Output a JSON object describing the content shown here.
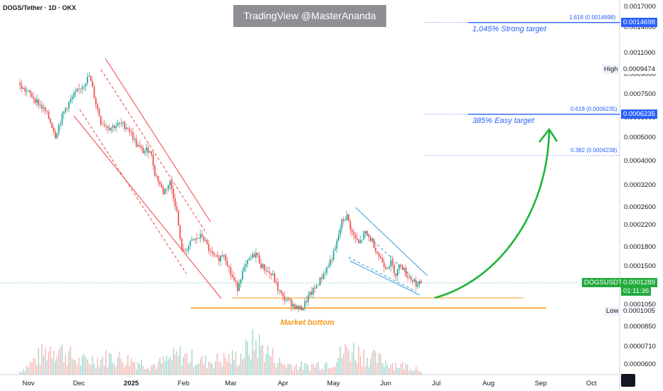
{
  "header": {
    "symbol_title": "DOGS/Tether · 1D · OKX",
    "watermark": "TradingView @MasterAnanda"
  },
  "y_axis_labels": [
    {
      "value": 0.0017,
      "text": "0.0017000"
    },
    {
      "value": 0.0014,
      "text": "0.0014000"
    },
    {
      "value": 0.0011,
      "text": "0.0011000"
    },
    {
      "value": 0.0009,
      "text": "0.0009000"
    },
    {
      "value": 0.00075,
      "text": "0.0007500"
    },
    {
      "value": 0.0006,
      "text": "0.0006000"
    },
    {
      "value": 0.0005,
      "text": "0.0005000"
    },
    {
      "value": 0.0004,
      "text": "0.0004000"
    },
    {
      "value": 0.00032,
      "text": "0.0003200"
    },
    {
      "value": 0.00026,
      "text": "0.0002600"
    },
    {
      "value": 0.00022,
      "text": "0.0002200"
    },
    {
      "value": 0.00018,
      "text": "0.0001800"
    },
    {
      "value": 0.00015,
      "text": "0.0001500"
    },
    {
      "value": 0.000105,
      "text": "0.0001050"
    },
    {
      "value": 8.5e-05,
      "text": "0.0000850"
    },
    {
      "value": 7.1e-05,
      "text": "0.0000710"
    },
    {
      "value": 6e-05,
      "text": "0.0000600"
    }
  ],
  "x_axis_labels": [
    {
      "text": "Nov",
      "day": 0,
      "bold": false
    },
    {
      "text": "Dec",
      "day": 30,
      "bold": false
    },
    {
      "text": "2025",
      "day": 61,
      "bold": true
    },
    {
      "text": "Feb",
      "day": 92,
      "bold": false
    },
    {
      "text": "Mar",
      "day": 120,
      "bold": false
    },
    {
      "text": "Apr",
      "day": 151,
      "bold": false
    },
    {
      "text": "May",
      "day": 181,
      "bold": false
    },
    {
      "text": "Jun",
      "day": 212,
      "bold": false
    },
    {
      "text": "Jul",
      "day": 242,
      "bold": false
    },
    {
      "text": "Aug",
      "day": 273,
      "bold": false
    },
    {
      "text": "Sep",
      "day": 304,
      "bold": false
    },
    {
      "text": "Oct",
      "day": 334,
      "bold": false
    }
  ],
  "price_tags": {
    "strong_target": "0.0014698",
    "high": "0.0009474",
    "easy_target": "0.0006235",
    "current_symbol": "DOGSUSDT",
    "current_price": "0.0001289",
    "countdown": "01:11:36",
    "low": "0.0001005"
  },
  "side_labels": {
    "high": "High",
    "low": "Low"
  },
  "fib_levels": [
    {
      "label": "1.618 (0.0014698)",
      "value": 0.0014698
    },
    {
      "label": "0.618 (0.0006235)",
      "value": 0.0006235
    },
    {
      "label": "0.382 (0.0004238)",
      "value": 0.0004238
    }
  ],
  "annotations": {
    "strong_target": "1,045% Strong target",
    "easy_target": "385% Easy target",
    "market_bottom": "Market bottom"
  },
  "colors": {
    "up": "#26a69a",
    "down": "#ef5350",
    "fib": "#2962ff",
    "support": "#f59b18",
    "arrow": "#1eb53a",
    "channel_red": "#f0434a",
    "wedge_blue": "#3a9fd6",
    "current_tag": "#22ab3d"
  },
  "chart_data": {
    "type": "candlestick",
    "symbol": "DOGSUSDT",
    "timeframe": "1D",
    "exchange": "OKX",
    "y_scale": "log",
    "ylim": [
      5.8e-05,
      0.00172
    ],
    "x": "days since Nov 1 2024",
    "price_waypoints": [
      [
        -5,
        0.00081
      ],
      [
        2,
        0.00074
      ],
      [
        10,
        0.00064
      ],
      [
        14,
        0.00056
      ],
      [
        16,
        0.00051
      ],
      [
        22,
        0.00066
      ],
      [
        27,
        0.00074
      ],
      [
        33,
        0.00083
      ],
      [
        36,
        0.00089
      ],
      [
        40,
        0.00069
      ],
      [
        43,
        0.00058
      ],
      [
        48,
        0.00055
      ],
      [
        55,
        0.00057
      ],
      [
        59,
        0.00055
      ],
      [
        64,
        0.00047
      ],
      [
        68,
        0.00044
      ],
      [
        72,
        0.00045
      ],
      [
        75,
        0.00036
      ],
      [
        80,
        0.0003
      ],
      [
        84,
        0.00033
      ],
      [
        88,
        0.00025
      ],
      [
        90,
        0.00019
      ],
      [
        92,
        0.00017
      ],
      [
        97,
        0.00019
      ],
      [
        103,
        0.0002
      ],
      [
        108,
        0.00017
      ],
      [
        112,
        0.00016
      ],
      [
        116,
        0.00017
      ],
      [
        120,
        0.00014
      ],
      [
        124,
        0.000123
      ],
      [
        126,
        0.000137
      ],
      [
        131,
        0.00016
      ],
      [
        135,
        0.00017
      ],
      [
        138,
        0.000152
      ],
      [
        142,
        0.000143
      ],
      [
        145,
        0.000137
      ],
      [
        148,
        0.000122
      ],
      [
        151,
        0.000112
      ],
      [
        155,
        0.000108
      ],
      [
        159,
        0.000102
      ],
      [
        161,
        0.000101
      ],
      [
        163,
        0.000103
      ],
      [
        166,
        0.000113
      ],
      [
        170,
        0.000122
      ],
      [
        174,
        0.000136
      ],
      [
        178,
        0.000152
      ],
      [
        182,
        0.000175
      ],
      [
        186,
        0.000228
      ],
      [
        189,
        0.00024
      ],
      [
        192,
        0.000205
      ],
      [
        196,
        0.000185
      ],
      [
        200,
        0.000205
      ],
      [
        204,
        0.00019
      ],
      [
        208,
        0.000165
      ],
      [
        212,
        0.00015
      ],
      [
        215,
        0.000155
      ],
      [
        218,
        0.00014
      ],
      [
        221,
        0.000155
      ],
      [
        224,
        0.00014
      ],
      [
        228,
        0.000132
      ],
      [
        231,
        0.000126
      ],
      [
        233,
        0.0001289
      ]
    ],
    "volume_waypoints": [
      [
        -5,
        0.1
      ],
      [
        15,
        0.9
      ],
      [
        30,
        0.4
      ],
      [
        50,
        0.55
      ],
      [
        75,
        0.3
      ],
      [
        90,
        0.6
      ],
      [
        105,
        0.4
      ],
      [
        125,
        0.55
      ],
      [
        135,
        1.0
      ],
      [
        150,
        0.35
      ],
      [
        165,
        0.25
      ],
      [
        180,
        0.4
      ],
      [
        190,
        0.8
      ],
      [
        205,
        0.5
      ],
      [
        220,
        0.3
      ],
      [
        233,
        0.2
      ]
    ],
    "fibonacci": [
      {
        "ratio": 1.618,
        "price": 0.0014698
      },
      {
        "ratio": 0.618,
        "price": 0.0006235
      },
      {
        "ratio": 0.382,
        "price": 0.0004238
      }
    ],
    "high": 0.0009474,
    "low": 0.0001005,
    "current": 0.0001289,
    "support_levels": [
      0.0001005,
      0.000112
    ],
    "targets": [
      {
        "label": "385% Easy target",
        "price": 0.0006235
      },
      {
        "label": "1,045% Strong target",
        "price": 0.0014698
      }
    ]
  }
}
